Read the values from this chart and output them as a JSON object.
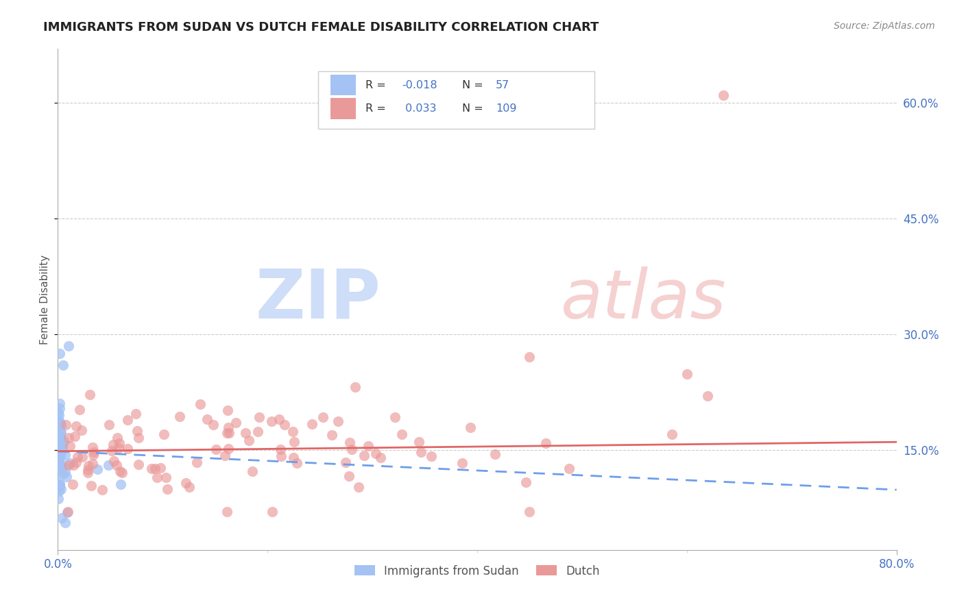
{
  "title": "IMMIGRANTS FROM SUDAN VS DUTCH FEMALE DISABILITY CORRELATION CHART",
  "source": "Source: ZipAtlas.com",
  "ylabel": "Female Disability",
  "ytick_vals": [
    0.6,
    0.45,
    0.3,
    0.15
  ],
  "ytick_labels": [
    "60.0%",
    "45.0%",
    "30.0%",
    "15.0%"
  ],
  "xmin": 0.0,
  "xmax": 0.8,
  "ymin": 0.02,
  "ymax": 0.67,
  "color_blue": "#a4c2f4",
  "color_pink": "#ea9999",
  "line_blue_color": "#6d9eeb",
  "line_pink_color": "#e06666",
  "axis_tick_color": "#4472c4",
  "grid_color": "#cccccc",
  "title_color": "#222222",
  "source_color": "#888888",
  "ylabel_color": "#555555",
  "watermark_zip_color": "#c9daf8",
  "watermark_atlas_color": "#f4cccc",
  "legend_border_color": "#cccccc",
  "bottom_legend_text_color": "#555555",
  "blue_label": "Immigrants from Sudan",
  "pink_label": "Dutch",
  "r_blue": "-0.018",
  "n_blue": "57",
  "r_pink": "0.033",
  "n_pink": "109"
}
